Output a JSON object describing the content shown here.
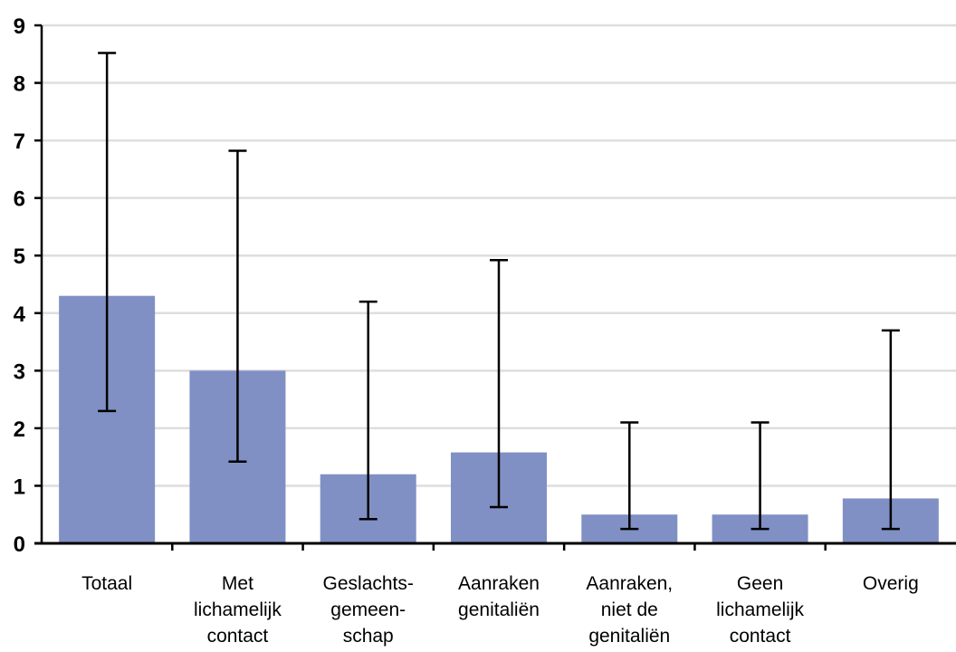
{
  "colors": {
    "bar": "#8090c4",
    "grid": "#dedede",
    "axis": "#000000",
    "error_bar": "#000000"
  },
  "chart_data": {
    "type": "bar",
    "title": "",
    "xlabel": "",
    "ylabel": "",
    "ylim": [
      0,
      9
    ],
    "y_ticks": [
      "0",
      "1",
      "2",
      "3",
      "4",
      "5",
      "6",
      "7",
      "8",
      "9"
    ],
    "grid": true,
    "legend": "none",
    "categories": [
      [
        "Totaal"
      ],
      [
        "Met",
        "lichamelijk",
        "contact"
      ],
      [
        "Geslachts-",
        "gemeen-",
        "schap"
      ],
      [
        "Aanraken",
        "genitaliën"
      ],
      [
        "Aanraken,",
        "niet de",
        "genitaliën"
      ],
      [
        "Geen",
        "lichamelijk",
        "contact"
      ],
      [
        "Overig"
      ]
    ],
    "values": [
      4.3,
      3.0,
      1.2,
      1.58,
      0.5,
      0.5,
      0.78
    ],
    "error_low": [
      2.3,
      1.42,
      0.42,
      0.63,
      0.25,
      0.25,
      0.25
    ],
    "error_high": [
      8.52,
      6.82,
      4.2,
      4.92,
      2.1,
      2.1,
      3.7
    ]
  }
}
